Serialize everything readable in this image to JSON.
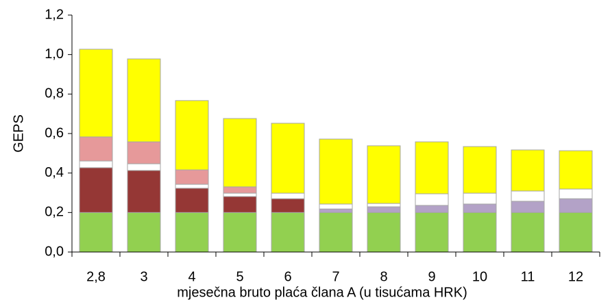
{
  "chart_data": {
    "type": "stacked_bar",
    "x_label": "mjesečna bruto plaća člana A (u tisućama HRK)",
    "y_label": "GEPS",
    "categories": [
      "2,8",
      "3",
      "4",
      "5",
      "6",
      "7",
      "8",
      "9",
      "10",
      "11",
      "12"
    ],
    "series": [
      {
        "color": "#92d050",
        "values": [
          0.2,
          0.2,
          0.2,
          0.2,
          0.2,
          0.2,
          0.2,
          0.2,
          0.2,
          0.2,
          0.2
        ]
      },
      {
        "color": "#b3a2c7",
        "values": [
          0,
          0,
          0,
          0,
          0,
          0.018,
          0.029,
          0.036,
          0.043,
          0.057,
          0.07
        ]
      },
      {
        "color": "#953735",
        "values": [
          0.227,
          0.213,
          0.123,
          0.081,
          0.07,
          0,
          0,
          0,
          0,
          0,
          0
        ]
      },
      {
        "color": "#ffffff",
        "values": [
          0.034,
          0.034,
          0.02,
          0.017,
          0.028,
          0.025,
          0.017,
          0.059,
          0.055,
          0.052,
          0.049
        ]
      },
      {
        "color": "#e6999a",
        "values": [
          0.122,
          0.111,
          0.073,
          0.032,
          0,
          0,
          0,
          0,
          0,
          0,
          0
        ]
      },
      {
        "color": "#ffff00",
        "values": [
          0.444,
          0.42,
          0.351,
          0.346,
          0.354,
          0.329,
          0.292,
          0.263,
          0.236,
          0.208,
          0.194
        ]
      }
    ],
    "ylim": [
      0,
      1.2
    ],
    "yticks": [
      {
        "value": 0,
        "label": "0,0"
      },
      {
        "value": 0.2,
        "label": "0,2"
      },
      {
        "value": 0.4,
        "label": "0,4"
      },
      {
        "value": 0.6,
        "label": "0,6"
      },
      {
        "value": 0.8,
        "label": "0,8"
      },
      {
        "value": 1,
        "label": "1,0"
      },
      {
        "value": 1.2,
        "label": "1,2"
      }
    ],
    "grid": false
  }
}
